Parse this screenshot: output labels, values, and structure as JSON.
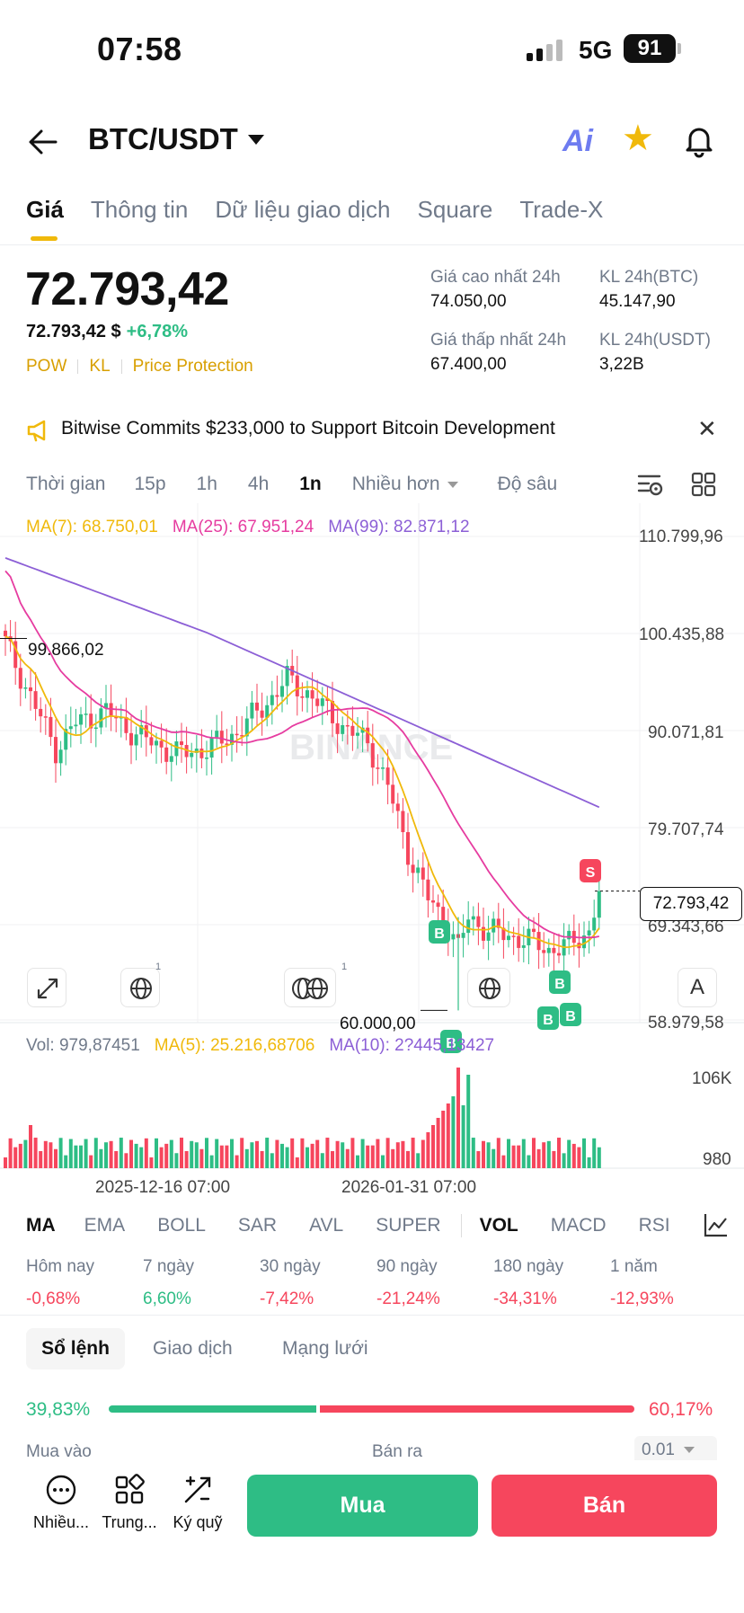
{
  "status_bar": {
    "time": "07:58",
    "network": "5G",
    "battery": "91"
  },
  "header": {
    "pair": "BTC/USDT",
    "ai_label": "Ai"
  },
  "tabs": [
    "Giá",
    "Thông tin",
    "Dữ liệu giao dịch",
    "Square",
    "Trade-X"
  ],
  "price": {
    "last": "72.793,42",
    "fiat": "72.793,42 $",
    "change_pct": "+6,78%",
    "tags": [
      "POW",
      "KL",
      "Price Protection"
    ]
  },
  "stats": {
    "high_label": "Giá cao nhất 24h",
    "high_value": "74.050,00",
    "low_label": "Giá thấp nhất 24h",
    "low_value": "67.400,00",
    "vol_btc_label": "KL 24h(BTC)",
    "vol_btc_value": "45.147,90",
    "vol_usdt_label": "KL 24h(USDT)",
    "vol_usdt_value": "3,22B"
  },
  "news": {
    "text": "Bitwise Commits $233,000 to Support Bitcoin Development"
  },
  "intervals": {
    "time_label": "Thời gian",
    "items": [
      "15p",
      "1h",
      "4h",
      "1n"
    ],
    "active": "1n",
    "more": "Nhiều hơn",
    "depth": "Độ sâu"
  },
  "ma_legend": {
    "ma7": "MA(7): 68.750,01",
    "ma25": "MA(25): 67.951,24",
    "ma99": "MA(99): 82.871,12"
  },
  "chart": {
    "y_labels": [
      "110.799,96",
      "100.435,88",
      "90.071,81",
      "79.707,74",
      "69.343,66",
      "58.979,58"
    ],
    "current_price": "72.793,42",
    "high_marker": "99.866,02",
    "low_marker": "60.000,00",
    "x_labels": [
      "2025-12-16 07:00",
      "2026-01-31 07:00"
    ],
    "watermark": "BINANCE",
    "sell_marker": "S",
    "buy_marker": "B",
    "badge_count": "1",
    "auto_label": "A"
  },
  "chart_data": {
    "type": "candlestick",
    "interval": "1n",
    "ylim": [
      58979.58,
      110799.96
    ],
    "x_ticks": [
      "2025-12-16 07:00",
      "2026-01-31 07:00"
    ],
    "annotations": {
      "period_high": 99866.02,
      "period_low": 60000.0,
      "last_price": 72793.42
    },
    "indicators": {
      "MA7": 68750.01,
      "MA25": 67951.24,
      "MA99": 82871.12
    },
    "volume": {
      "y_labels": [
        "106K",
        "980"
      ],
      "last": 979.87451,
      "MA5": 25216.68706,
      "MA10_label": "2?445,13427"
    },
    "colors": {
      "up": "#2ebd85",
      "down": "#f6465d",
      "ma7": "#f0b90b",
      "ma25": "#e63ca0",
      "ma99": "#8c5fd6"
    }
  },
  "vol_legend": {
    "vol": "Vol: 979,87451",
    "ma5": "MA(5): 25.216,68706",
    "ma10": "MA(10): 2?445,13427"
  },
  "volume_axis": {
    "top": "106K",
    "bottom": "980"
  },
  "indicator_tabs": [
    "MA",
    "EMA",
    "BOLL",
    "SAR",
    "AVL",
    "SUPER",
    "VOL",
    "MACD",
    "RSI"
  ],
  "performance": [
    {
      "label": "Hôm nay",
      "value": "-0,68%"
    },
    {
      "label": "7 ngày",
      "value": "6,60%"
    },
    {
      "label": "30 ngày",
      "value": "-7,42%"
    },
    {
      "label": "90 ngày",
      "value": "-21,24%"
    },
    {
      "label": "180 ngày",
      "value": "-34,31%"
    },
    {
      "label": "1 năm",
      "value": "-12,93%"
    }
  ],
  "book_tabs": [
    "Sổ lệnh",
    "Giao dịch",
    "Mạng lưới"
  ],
  "order_ratio": {
    "buy_pct": "39,83%",
    "sell_pct": "60,17%",
    "buy_fraction": 0.3983
  },
  "order_book": {
    "buy_head": "Mua vào",
    "sell_head": "Bán ra",
    "precision": "0.01"
  },
  "bottom_nav": {
    "more": "Nhiều...",
    "center": "Trung...",
    "margin": "Ký quỹ",
    "buy": "Mua",
    "sell": "Bán"
  }
}
